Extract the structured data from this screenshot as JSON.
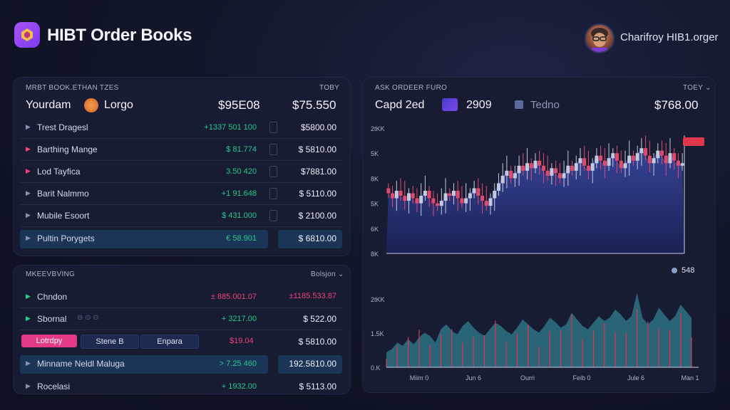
{
  "header": {
    "app_title": "HIBT Order Books",
    "user_name": "Charifroy HIB1.orger"
  },
  "order_panel": {
    "label_left": "MRBT BOOK.ETHAN TZES",
    "label_right": "TOBY",
    "summary": {
      "name": "Yourdam",
      "token": "Lorgo",
      "value_1": "$95E08",
      "value_2": "$75.550"
    },
    "rows": [
      {
        "name": "Trest Dragesl",
        "change": "+1337 501 100",
        "price": "$5800.00"
      },
      {
        "name": "Barthing Mange",
        "change": "$ 81.774",
        "price": "$ 5810.00"
      },
      {
        "name": "Lod Tayfica",
        "change": "3.50 420",
        "price": "$7881.00"
      },
      {
        "name": "Barit Nalmmo",
        "change": "+1 91.648",
        "price": "$ 5110.00"
      },
      {
        "name": "Mubile Esoort",
        "change": "$ 431.000",
        "price": "$ 2100.00"
      },
      {
        "name": "Pultin Porygets",
        "change": "€ 58.901",
        "price": "$ 6810.00"
      }
    ]
  },
  "lower_panel": {
    "label_left": "MKEEVBVING",
    "label_right": "Bolsjon",
    "rows": [
      {
        "name": "Chndon",
        "change": "± 885.001.07",
        "price": "±1185.533.87"
      },
      {
        "name": "Sbornal",
        "change": "+ 3217.00",
        "price": "$ 522.00"
      }
    ],
    "buttons": [
      "Lotrdpy",
      "Stene B",
      "Enpara"
    ],
    "buttons_row": {
      "change": "$19.04",
      "price": "$ 5810.00"
    },
    "rows_b": [
      {
        "name": "Minname Neldl Maluga",
        "change": "> 7.25 460",
        "price": "192.5810.00"
      },
      {
        "name": "Rocelasi",
        "change": "+ 1932.00",
        "price": "$ 5113.00"
      }
    ]
  },
  "chart_panel": {
    "label_left": "ASK ORDEER FURO",
    "label_right": "TOEY",
    "pair": "Capd 2ed",
    "pair_value": "2909",
    "exchange": "Tedno",
    "price": "$768.00",
    "current_tag": "",
    "legend_value": "548",
    "y_labels_top": [
      "2tKK",
      "5K",
      "8K",
      "5K",
      "6K",
      "8K"
    ],
    "y_labels_bottom": [
      "2tKK",
      "1.5K",
      "0.K"
    ],
    "x_labels": [
      "Miim 0",
      "Jun 6",
      "Ourri",
      "Feib 0",
      "Jule 6",
      "Man 1"
    ]
  },
  "chart_data": [
    {
      "type": "candlestick",
      "title": "",
      "series": [
        {
          "name": "",
          "open": [
            52,
            48,
            44,
            50,
            46,
            42,
            48,
            44,
            40,
            46,
            50,
            44,
            40,
            38,
            42,
            48,
            46,
            50,
            44,
            40,
            44,
            48,
            52,
            46,
            42,
            38,
            44,
            50,
            56,
            62,
            66,
            60,
            64,
            70,
            66,
            72,
            68,
            74,
            70,
            66,
            62,
            68,
            64,
            60,
            64,
            70,
            66,
            72,
            76,
            70,
            66,
            72,
            78,
            74,
            70,
            76,
            80,
            74,
            68,
            72,
            78,
            74,
            80,
            84,
            78,
            72,
            76,
            82,
            78,
            72,
            80,
            74,
            70
          ]
        }
      ],
      "ylim": [
        0,
        100
      ]
    },
    {
      "type": "area",
      "title": "",
      "series": [
        {
          "name": "",
          "values": [
            18,
            22,
            30,
            26,
            34,
            28,
            36,
            42,
            38,
            30,
            46,
            52,
            44,
            40,
            50,
            56,
            48,
            42,
            38,
            46,
            54,
            50,
            44,
            40,
            48,
            58,
            52,
            46,
            42,
            50,
            60,
            55,
            48,
            52,
            66,
            58,
            50,
            46,
            54,
            62,
            56,
            60,
            70,
            64,
            56,
            62,
            90,
            60,
            52,
            58,
            72,
            64,
            56,
            62,
            76,
            68,
            60
          ]
        }
      ],
      "ylim": [
        0,
        100
      ]
    }
  ]
}
